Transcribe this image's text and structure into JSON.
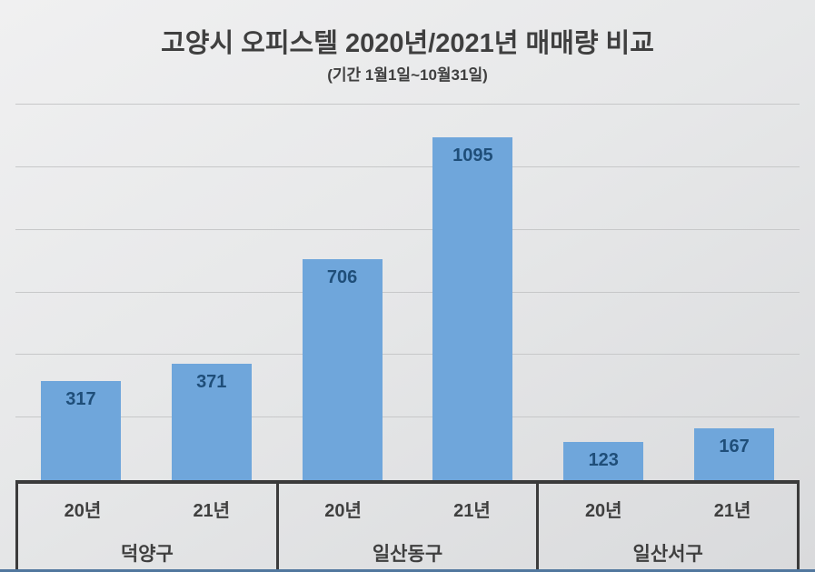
{
  "chart": {
    "title": "고양시 오피스텔 2020년/2021년 매매량 비교",
    "subtitle": "(기간 1월1일~10월31일)"
  },
  "chart_data": {
    "type": "bar",
    "title": "고양시 오피스텔 2020년/2021년 매매량 비교",
    "subtitle": "(기간 1월1일~10월31일)",
    "categories": [
      "덕양구",
      "일산동구",
      "일산서구"
    ],
    "series": [
      {
        "name": "20년",
        "values": [
          317,
          706,
          123
        ]
      },
      {
        "name": "21년",
        "values": [
          371,
          1095,
          167
        ]
      }
    ],
    "xlabel": "",
    "ylabel": "",
    "ylim": [
      0,
      1200
    ],
    "gridline_step": 200,
    "grid": true,
    "y_tick_labels_visible": false,
    "legend_position": "none",
    "data_labels_position": "inside-end",
    "axis_style": "two-level category table (year row + district row)",
    "colors": {
      "bar_fill": "#6fa6db",
      "data_label": "#1f4e79",
      "axis_line": "#3b3b3b",
      "gridline": "#c7c8c9",
      "text": "#3f3f3f",
      "background_top": "#f0f0f1",
      "background_bottom": "#d9dadc",
      "bottom_strip": "#51779e"
    }
  }
}
